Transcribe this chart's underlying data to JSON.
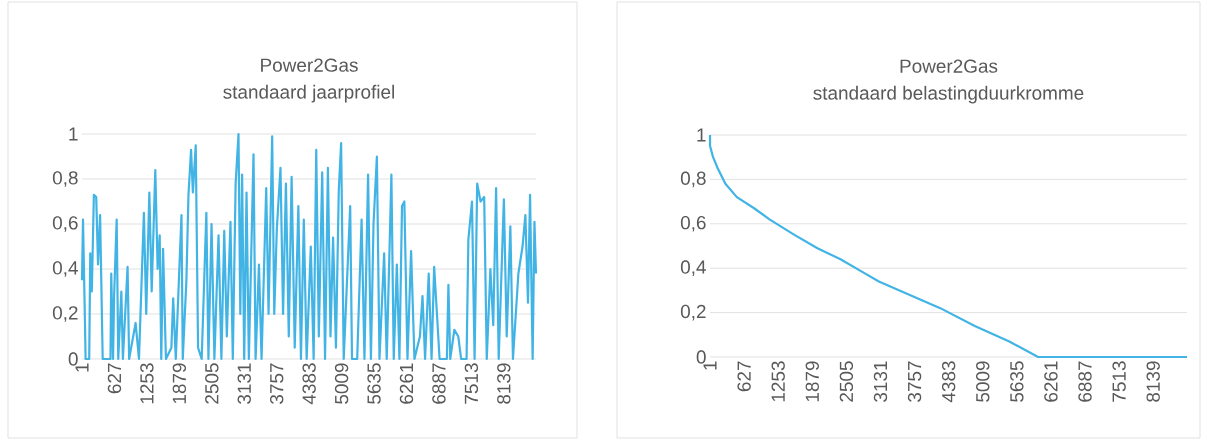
{
  "chart_data": [
    {
      "type": "line",
      "title": "Power2Gas",
      "subtitle": "standaard jaarprofiel",
      "color": "#41b4e5",
      "grid": "y",
      "x": [
        1,
        20,
        55,
        70,
        140,
        160,
        190,
        230,
        275,
        310,
        350,
        400,
        550,
        565,
        600,
        620,
        670,
        700,
        760,
        790,
        880,
        910,
        1035,
        1100,
        1195,
        1240,
        1300,
        1345,
        1415,
        1460,
        1500,
        1530,
        1565,
        1620,
        1725,
        1760,
        1810,
        1920,
        1945,
        2015,
        2055,
        2105,
        2140,
        2195,
        2240,
        2310,
        2400,
        2440,
        2500,
        2555,
        2635,
        2690,
        2745,
        2795,
        2865,
        2910,
        2965,
        3020,
        3055,
        3090,
        3130,
        3175,
        3220,
        3310,
        3350,
        3415,
        3465,
        3555,
        3600,
        3670,
        3710,
        3760,
        3830,
        3880,
        3935,
        3990,
        4045,
        4105,
        4175,
        4225,
        4280,
        4335,
        4415,
        4470,
        4520,
        4570,
        4635,
        4690,
        4745,
        4795,
        4845,
        4900,
        4955,
        5000,
        5050,
        5175,
        5210,
        5310,
        5395,
        5450,
        5520,
        5575,
        5625,
        5690,
        5740,
        5830,
        5880,
        5970,
        6015,
        6075,
        6125,
        6175,
        6220,
        6280,
        6350,
        6415,
        6520,
        6570,
        6620,
        6690,
        6745,
        6795,
        6900,
        7040,
        7070,
        7105,
        7185,
        7260,
        7315,
        7420,
        7455,
        7525,
        7575,
        7625,
        7690,
        7760,
        7810,
        7880,
        7935,
        7990,
        8040,
        8140,
        8195,
        8265,
        8315,
        8420,
        8500,
        8555,
        8605,
        8645,
        8695,
        8730,
        8760
      ],
      "values": [
        0.35,
        0.62,
        0.2,
        0,
        0,
        0.47,
        0.3,
        0.73,
        0.72,
        0.42,
        0.64,
        0,
        0,
        0.38,
        0,
        0.28,
        0.62,
        0,
        0.3,
        0,
        0.41,
        0,
        0.16,
        0,
        0.65,
        0.2,
        0.74,
        0.3,
        0.84,
        0.4,
        0.55,
        0,
        0.49,
        0,
        0.05,
        0.27,
        0,
        0.64,
        0,
        0.35,
        0.73,
        0.93,
        0.74,
        0.95,
        0.05,
        0,
        0.65,
        0,
        0.6,
        0,
        0.55,
        0,
        0.57,
        0.1,
        0.61,
        0,
        0.78,
        1.0,
        0.2,
        0.82,
        0,
        0.74,
        0,
        0.91,
        0,
        0.42,
        0,
        0.76,
        0.2,
        0.99,
        0.2,
        0.58,
        0.85,
        0.2,
        0.78,
        0.1,
        0.81,
        0.05,
        0.68,
        0,
        0.62,
        0,
        0.5,
        0,
        0.93,
        0.1,
        0.83,
        0,
        0.85,
        0.1,
        0.54,
        0.05,
        0.75,
        0.96,
        0,
        0.68,
        0,
        0,
        0.62,
        0,
        0.82,
        0,
        0.6,
        0.9,
        0,
        0.47,
        0,
        0.82,
        0,
        0.42,
        0,
        0.68,
        0.7,
        0,
        0.48,
        0,
        0.1,
        0.28,
        0,
        0.38,
        0,
        0.41,
        0,
        0,
        0.33,
        0,
        0.13,
        0.1,
        0,
        0,
        0.53,
        0.7,
        0,
        0.78,
        0.7,
        0.72,
        0,
        0.4,
        0.15,
        0.76,
        0,
        0.71,
        0.1,
        0.59,
        0,
        0.38,
        0.5,
        0.64,
        0.25,
        0.73,
        0,
        0.61,
        0.38
      ],
      "xlim": [
        1,
        8760
      ],
      "xticks": [
        1,
        627,
        1253,
        1879,
        2505,
        3131,
        3757,
        4383,
        5009,
        5635,
        6261,
        6887,
        7513,
        8139
      ],
      "ylim": [
        0,
        1
      ],
      "yticks": [
        0,
        {
          "value": 0.2,
          "label": "0,2"
        },
        {
          "value": 0.4,
          "label": "0,4"
        },
        {
          "value": 0.6,
          "label": "0,6"
        },
        {
          "value": 0.8,
          "label": "0,8"
        },
        1
      ]
    },
    {
      "type": "line",
      "title": "Power2Gas",
      "subtitle": "standaard belastingduurkromme",
      "color": "#41b4e5",
      "grid": "y",
      "x": [
        1,
        2,
        57,
        142,
        283,
        494,
        811,
        1093,
        1551,
        1974,
        2397,
        2820,
        3101,
        3665,
        4229,
        4863,
        5497,
        6025,
        8760
      ],
      "values": [
        1.0,
        0.95,
        0.9,
        0.85,
        0.78,
        0.72,
        0.67,
        0.62,
        0.55,
        0.49,
        0.44,
        0.38,
        0.34,
        0.28,
        0.22,
        0.14,
        0.07,
        0,
        0
      ],
      "xlim": [
        1,
        8760
      ],
      "xticks": [
        1,
        627,
        1253,
        1879,
        2505,
        3131,
        3757,
        4383,
        5009,
        5635,
        6261,
        6887,
        7513,
        8139
      ],
      "ylim": [
        0,
        1
      ],
      "yticks": [
        0,
        {
          "value": 0.2,
          "label": "0,2"
        },
        {
          "value": 0.4,
          "label": "0,4"
        },
        {
          "value": 0.6,
          "label": "0,6"
        },
        {
          "value": 0.8,
          "label": "0,8"
        },
        1
      ]
    }
  ]
}
